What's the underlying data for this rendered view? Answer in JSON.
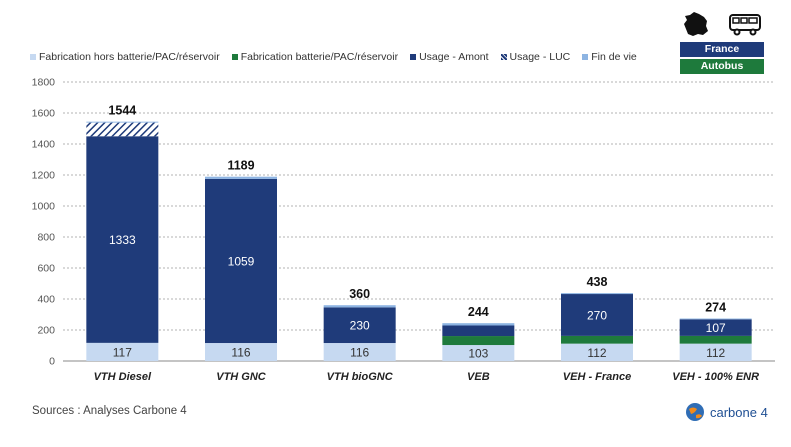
{
  "chart_data": {
    "type": "bar",
    "stacked": true,
    "categories": [
      "VTH Diesel",
      "VTH GNC",
      "VTH bioGNC",
      "VEB",
      "VEH - France",
      "VEH - 100% ENR"
    ],
    "series": [
      {
        "name": "Fabrication hors batterie/PAC/réservoir",
        "color": "#c6d9f1",
        "values": [
          117,
          116,
          116,
          103,
          112,
          112
        ],
        "labels": [
          "117",
          "116",
          "116",
          "103",
          "112",
          "112"
        ]
      },
      {
        "name": "Fabrication batterie/PAC/réservoir",
        "color": "#1e7a3c",
        "values": [
          0,
          0,
          0,
          58,
          50,
          50
        ]
      },
      {
        "name": "Usage - Amont",
        "color": "#1f3b7a",
        "values": [
          1333,
          1059,
          230,
          68,
          270,
          107
        ],
        "labels": [
          "1333",
          "1059",
          "230",
          "",
          "270",
          "107"
        ]
      },
      {
        "name": "Usage - LUC",
        "color": "#1f3b7a",
        "pattern": "hatch",
        "values": [
          88,
          0,
          0,
          0,
          0,
          0
        ]
      },
      {
        "name": "Fin de vie",
        "color": "#8db4e2",
        "values": [
          6,
          14,
          14,
          15,
          6,
          5
        ]
      }
    ],
    "totals": [
      "1544",
      "1189",
      "360",
      "244",
      "438",
      "274"
    ],
    "ylim": [
      0,
      1800
    ],
    "yticks": [
      "0",
      "200",
      "400",
      "600",
      "800",
      "1000",
      "1200",
      "1400",
      "1600",
      "1800"
    ],
    "grid": true,
    "legend_position": "top"
  },
  "badges": {
    "country": "France",
    "vehicle": "Autobus",
    "country_color": "#1f3b7a",
    "vehicle_color": "#1e7a3c"
  },
  "icons": [
    "france-map-icon",
    "bus-icon"
  ],
  "footer": {
    "source": "Sources : Analyses Carbone 4"
  },
  "logo": {
    "text": "carbone 4"
  }
}
